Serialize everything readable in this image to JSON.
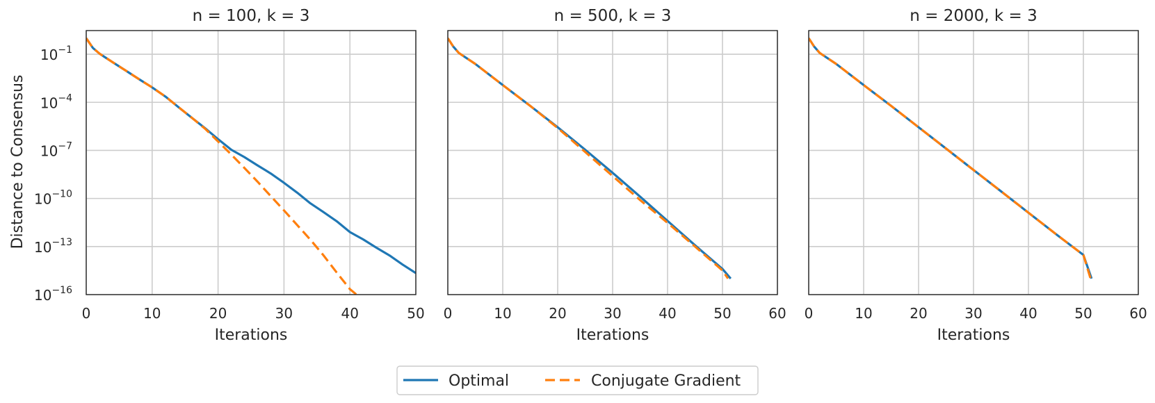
{
  "chart_data": [
    {
      "type": "line",
      "title": "n = 100, k = 3",
      "xlabel": "Iterations",
      "ylabel": "Distance to Consensus",
      "yscale": "log",
      "xlim": [
        0,
        50
      ],
      "ylim": [
        1e-16,
        3
      ],
      "xticks": [
        0,
        10,
        20,
        30,
        40,
        50
      ],
      "yticks": [
        -1,
        -4,
        -7,
        -10,
        -13,
        -16
      ],
      "grid": true,
      "series": [
        {
          "name": "Optimal",
          "color": "#1f77b4",
          "dash": "solid",
          "x": [
            0,
            1,
            2,
            4,
            6,
            8,
            10,
            12,
            14,
            16,
            18,
            20,
            22,
            24,
            26,
            28,
            30,
            32,
            34,
            36,
            38,
            40,
            42,
            44,
            46,
            48,
            50
          ],
          "y": [
            1,
            0.25,
            0.11,
            0.032,
            0.0095,
            0.0028,
            0.00085,
            0.00023,
            5e-05,
            1.1e-05,
            2.5e-06,
            5e-07,
            1.1e-07,
            3.8e-08,
            1.15e-08,
            3.6e-09,
            9.5e-10,
            2.3e-10,
            5e-11,
            1.4e-11,
            3.8e-12,
            8e-13,
            2.8e-13,
            8.5e-14,
            2.8e-14,
            7.5e-15,
            2.2e-15
          ]
        },
        {
          "name": "Conjugate Gradient",
          "color": "#ff7f0e",
          "dash": "dashed",
          "x": [
            0,
            1,
            2,
            4,
            6,
            8,
            10,
            12,
            14,
            16,
            18,
            20,
            22,
            24,
            26,
            28,
            30,
            32,
            34,
            36,
            38,
            40,
            41
          ],
          "y": [
            1,
            0.25,
            0.11,
            0.032,
            0.0095,
            0.0028,
            0.00085,
            0.00023,
            5e-05,
            1.1e-05,
            2.3e-06,
            3.6e-07,
            5.5e-08,
            8e-09,
            1.1e-09,
            1.4e-10,
            1.8e-11,
            2.2e-12,
            2.7e-13,
            2.8e-14,
            2.4e-15,
            2.2e-16,
            1e-16
          ]
        }
      ]
    },
    {
      "type": "line",
      "title": "n = 500, k = 3",
      "xlabel": "Iterations",
      "yscale": "log",
      "xlim": [
        0,
        60
      ],
      "ylim": [
        1e-16,
        3
      ],
      "xticks": [
        0,
        10,
        20,
        30,
        40,
        50,
        60
      ],
      "grid": true,
      "series": [
        {
          "name": "Optimal",
          "color": "#1f77b4",
          "dash": "solid",
          "x": [
            0,
            1,
            2,
            5,
            10,
            15,
            20,
            25,
            30,
            35,
            40,
            45,
            50,
            51.5
          ],
          "y": [
            1,
            0.3,
            0.12,
            0.025,
            0.0012,
            6e-05,
            2.8e-06,
            1.1e-07,
            4e-09,
            1.3e-10,
            4e-12,
            1.2e-13,
            4e-15,
            1e-15
          ]
        },
        {
          "name": "Conjugate Gradient",
          "color": "#ff7f0e",
          "dash": "dashed",
          "x": [
            0,
            1,
            2,
            5,
            10,
            15,
            20,
            25,
            30,
            35,
            40,
            45,
            50,
            51
          ],
          "y": [
            1,
            0.3,
            0.12,
            0.025,
            0.0012,
            6e-05,
            2.5e-06,
            8e-08,
            2.5e-09,
            8e-11,
            3e-12,
            1e-13,
            3.2e-15,
            1e-15
          ]
        }
      ]
    },
    {
      "type": "line",
      "title": "n = 2000, k = 3",
      "xlabel": "Iterations",
      "yscale": "log",
      "xlim": [
        0,
        60
      ],
      "ylim": [
        1e-16,
        3
      ],
      "xticks": [
        0,
        10,
        20,
        30,
        40,
        50,
        60
      ],
      "grid": true,
      "series": [
        {
          "name": "Optimal",
          "color": "#1f77b4",
          "dash": "solid",
          "x": [
            0,
            1,
            2,
            5,
            10,
            15,
            20,
            25,
            30,
            35,
            40,
            45,
            50,
            51.5
          ],
          "y": [
            1,
            0.3,
            0.12,
            0.025,
            0.0012,
            6e-05,
            2.8e-06,
            1.3e-07,
            6e-09,
            2.8e-10,
            1.3e-11,
            6e-13,
            3e-14,
            1e-15
          ]
        },
        {
          "name": "Conjugate Gradient",
          "color": "#ff7f0e",
          "dash": "dashed",
          "x": [
            0,
            1,
            2,
            5,
            10,
            15,
            20,
            25,
            30,
            35,
            40,
            45,
            50,
            51.3
          ],
          "y": [
            1,
            0.3,
            0.12,
            0.025,
            0.0012,
            6e-05,
            2.8e-06,
            1.3e-07,
            6e-09,
            2.8e-10,
            1.3e-11,
            6e-13,
            3e-14,
            1e-15
          ]
        }
      ]
    }
  ],
  "legend": {
    "placement": "bottom-center",
    "items": [
      {
        "label": "Optimal",
        "color": "#1f77b4",
        "dash": "solid"
      },
      {
        "label": "Conjugate Gradient",
        "color": "#ff7f0e",
        "dash": "dashed"
      }
    ]
  }
}
